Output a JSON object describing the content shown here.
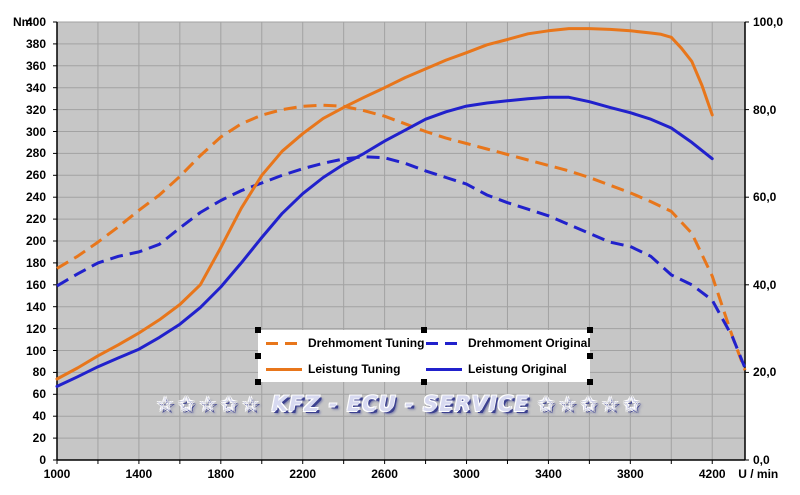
{
  "figure": {
    "watermark": {
      "left_stars": "☆✩☆✩☆",
      "text": "KFZ - ECU - SERVICE",
      "right_stars": "✩☆✩☆✩"
    },
    "colors": {
      "tuning_orange": "#E8761B",
      "original_blue": "#2121CC",
      "plot_background": "#C6C6C6",
      "gridline": "#A2A2A2",
      "axis": "#000000",
      "legend_background": "#FFFFFF",
      "watermark_fill": "#D7D9F0",
      "watermark_outline": "#3C4190"
    }
  },
  "axes": {
    "left": {
      "title": "Nm",
      "tick_labels": [
        "400",
        "380",
        "360",
        "340",
        "320",
        "300",
        "280",
        "260",
        "240",
        "220",
        "200",
        "180",
        "160",
        "140",
        "120",
        "100",
        "80",
        "60",
        "40",
        "20",
        "0"
      ],
      "tick_values": [
        400,
        380,
        360,
        340,
        320,
        300,
        280,
        260,
        240,
        220,
        200,
        180,
        160,
        140,
        120,
        100,
        80,
        60,
        40,
        20,
        0
      ],
      "range": [
        0,
        400
      ]
    },
    "right": {
      "tick_labels": [
        "100,0",
        "80,0",
        "60,0",
        "40,0",
        "20,0",
        "0,0"
      ],
      "tick_values": [
        100,
        80,
        60,
        40,
        20,
        0
      ],
      "range": [
        0,
        100
      ]
    },
    "x": {
      "title": "U / min",
      "tick_labels": [
        "1000",
        "1400",
        "1800",
        "2200",
        "2600",
        "3000",
        "3400",
        "3800",
        "4200"
      ],
      "tick_values": [
        1000,
        1400,
        1800,
        2200,
        2600,
        3000,
        3400,
        3800,
        4200
      ],
      "minor_step": 200,
      "range": [
        1000,
        4360
      ]
    }
  },
  "legend": {
    "items": [
      {
        "label": "Drehmoment Tuning",
        "color_key": "tuning_orange",
        "dashed": true
      },
      {
        "label": "Drehmoment Original",
        "color_key": "original_blue",
        "dashed": true
      },
      {
        "label": "Leistung Tuning",
        "color_key": "tuning_orange",
        "dashed": false
      },
      {
        "label": "Leistung Original",
        "color_key": "original_blue",
        "dashed": false
      }
    ]
  },
  "chart_data": {
    "type": "line",
    "title": "",
    "xlabel": "U / min",
    "ylabel_left": "Nm",
    "ylabel_right": "",
    "x_range": [
      1000,
      4360
    ],
    "y_left_range": [
      0,
      400
    ],
    "y_right_range": [
      0,
      100
    ],
    "grid": true,
    "legend_position": "bottom-center",
    "series": [
      {
        "name": "Drehmoment Tuning",
        "axis": "left",
        "unit": "Nm",
        "style": "dashed",
        "color_key": "tuning_orange",
        "points": [
          [
            1000,
            175
          ],
          [
            1100,
            186
          ],
          [
            1200,
            199
          ],
          [
            1300,
            213
          ],
          [
            1400,
            228
          ],
          [
            1500,
            242
          ],
          [
            1600,
            259
          ],
          [
            1700,
            278
          ],
          [
            1800,
            295
          ],
          [
            1900,
            307
          ],
          [
            2000,
            315
          ],
          [
            2100,
            320
          ],
          [
            2200,
            323
          ],
          [
            2300,
            324
          ],
          [
            2400,
            323
          ],
          [
            2500,
            319
          ],
          [
            2600,
            314
          ],
          [
            2700,
            307
          ],
          [
            2800,
            300
          ],
          [
            2900,
            294
          ],
          [
            3000,
            289
          ],
          [
            3100,
            284
          ],
          [
            3200,
            279
          ],
          [
            3300,
            274
          ],
          [
            3400,
            269
          ],
          [
            3500,
            264
          ],
          [
            3600,
            258
          ],
          [
            3700,
            251
          ],
          [
            3800,
            244
          ],
          [
            3900,
            236
          ],
          [
            4000,
            227
          ],
          [
            4100,
            207
          ],
          [
            4200,
            168
          ],
          [
            4300,
            112
          ],
          [
            4360,
            82
          ]
        ]
      },
      {
        "name": "Drehmoment Original",
        "axis": "left",
        "unit": "Nm",
        "style": "dashed",
        "color_key": "original_blue",
        "points": [
          [
            1000,
            159
          ],
          [
            1100,
            170
          ],
          [
            1200,
            180
          ],
          [
            1300,
            186
          ],
          [
            1400,
            190
          ],
          [
            1500,
            197
          ],
          [
            1600,
            212
          ],
          [
            1700,
            226
          ],
          [
            1800,
            237
          ],
          [
            1900,
            246
          ],
          [
            2000,
            253
          ],
          [
            2100,
            260
          ],
          [
            2200,
            266
          ],
          [
            2300,
            271
          ],
          [
            2400,
            275
          ],
          [
            2500,
            277
          ],
          [
            2600,
            276
          ],
          [
            2700,
            271
          ],
          [
            2800,
            264
          ],
          [
            2900,
            258
          ],
          [
            3000,
            252
          ],
          [
            3100,
            242
          ],
          [
            3200,
            235
          ],
          [
            3300,
            229
          ],
          [
            3400,
            223
          ],
          [
            3500,
            215
          ],
          [
            3600,
            207
          ],
          [
            3700,
            199
          ],
          [
            3800,
            195
          ],
          [
            3900,
            186
          ],
          [
            4000,
            169
          ],
          [
            4100,
            160
          ],
          [
            4200,
            146
          ],
          [
            4300,
            112
          ],
          [
            4360,
            84
          ]
        ]
      },
      {
        "name": "Leistung Tuning",
        "axis": "right",
        "unit": "",
        "style": "solid",
        "color_key": "tuning_orange",
        "points": [
          [
            1000,
            18.5
          ],
          [
            1100,
            21
          ],
          [
            1200,
            23.8
          ],
          [
            1300,
            26.3
          ],
          [
            1400,
            29
          ],
          [
            1500,
            32
          ],
          [
            1600,
            35.5
          ],
          [
            1700,
            40
          ],
          [
            1800,
            48.5
          ],
          [
            1900,
            57.5
          ],
          [
            2000,
            65
          ],
          [
            2100,
            70.5
          ],
          [
            2200,
            74.5
          ],
          [
            2300,
            78
          ],
          [
            2400,
            80.5
          ],
          [
            2500,
            82.8
          ],
          [
            2600,
            85
          ],
          [
            2700,
            87.3
          ],
          [
            2800,
            89.3
          ],
          [
            2900,
            91.3
          ],
          [
            3000,
            93
          ],
          [
            3100,
            94.8
          ],
          [
            3200,
            96
          ],
          [
            3300,
            97.3
          ],
          [
            3400,
            98
          ],
          [
            3500,
            98.5
          ],
          [
            3600,
            98.5
          ],
          [
            3700,
            98.3
          ],
          [
            3800,
            98
          ],
          [
            3900,
            97.5
          ],
          [
            3950,
            97.2
          ],
          [
            4000,
            96.5
          ],
          [
            4050,
            94
          ],
          [
            4100,
            91
          ],
          [
            4150,
            85.5
          ],
          [
            4200,
            78.8
          ]
        ]
      },
      {
        "name": "Leistung Original",
        "axis": "right",
        "unit": "",
        "style": "solid",
        "color_key": "original_blue",
        "points": [
          [
            1000,
            16.8
          ],
          [
            1100,
            19
          ],
          [
            1200,
            21.3
          ],
          [
            1300,
            23.3
          ],
          [
            1400,
            25.3
          ],
          [
            1500,
            28
          ],
          [
            1600,
            31
          ],
          [
            1700,
            34.8
          ],
          [
            1800,
            39.5
          ],
          [
            1900,
            45
          ],
          [
            2000,
            50.8
          ],
          [
            2100,
            56.3
          ],
          [
            2200,
            60.8
          ],
          [
            2300,
            64.5
          ],
          [
            2400,
            67.5
          ],
          [
            2500,
            70
          ],
          [
            2600,
            72.8
          ],
          [
            2700,
            75.3
          ],
          [
            2800,
            77.8
          ],
          [
            2900,
            79.5
          ],
          [
            3000,
            80.8
          ],
          [
            3100,
            81.5
          ],
          [
            3200,
            82
          ],
          [
            3300,
            82.5
          ],
          [
            3400,
            82.8
          ],
          [
            3500,
            82.8
          ],
          [
            3600,
            81.8
          ],
          [
            3700,
            80.5
          ],
          [
            3800,
            79.3
          ],
          [
            3900,
            77.8
          ],
          [
            4000,
            75.8
          ],
          [
            4100,
            72.5
          ],
          [
            4200,
            68.8
          ]
        ]
      }
    ]
  }
}
